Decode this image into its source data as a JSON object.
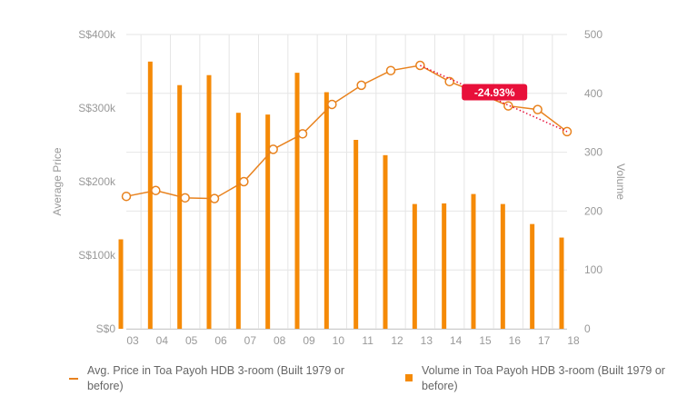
{
  "chart_data": {
    "type": "bar+line",
    "categories": [
      "03",
      "04",
      "05",
      "06",
      "07",
      "08",
      "09",
      "10",
      "11",
      "12",
      "13",
      "14",
      "15",
      "16",
      "17",
      "18"
    ],
    "series": [
      {
        "name": "Avg. Price in Toa Payoh HDB 3-room (Built 1979 or before)",
        "type": "line",
        "axis": "left",
        "values": [
          180000,
          188000,
          178000,
          177000,
          200000,
          244000,
          265000,
          305000,
          331000,
          351000,
          358000,
          336000,
          320000,
          303000,
          298000,
          268000
        ]
      },
      {
        "name": "Volume in Toa Payoh HDB 3-room (Built 1979 or before)",
        "type": "bar",
        "axis": "right",
        "values": [
          152,
          454,
          414,
          431,
          367,
          364,
          435,
          402,
          321,
          295,
          212,
          213,
          229,
          212,
          178,
          155
        ]
      }
    ],
    "y_left": {
      "label": "Average Price",
      "range": [
        0,
        400000
      ],
      "ticks": [
        "S$0",
        "S$100k",
        "S$200k",
        "S$300k",
        "S$400k"
      ]
    },
    "y_right": {
      "label": "Volume",
      "range": [
        0,
        500
      ],
      "ticks": [
        "0",
        "100",
        "200",
        "300",
        "400",
        "500"
      ]
    },
    "annotation": {
      "text": "-24.93%",
      "from_index": 13,
      "to_index": 18,
      "color": "#e8103a"
    },
    "colors": {
      "line": "#e8821e",
      "bar": "#f58a07",
      "grid": "#e6e6e6",
      "axis_text": "#999999"
    },
    "grid": true,
    "legend": "bottom"
  }
}
